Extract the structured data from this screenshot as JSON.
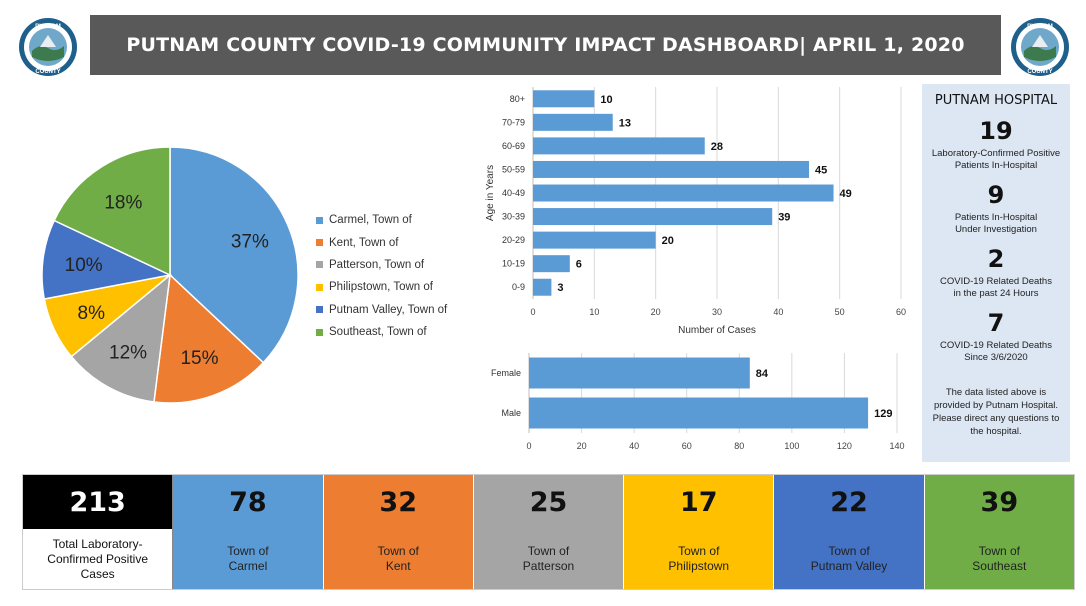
{
  "header": {
    "title": "PUTNAM COUNTY COVID-19 COMMUNITY IMPACT DASHBOARD| APRIL 1, 2020"
  },
  "seal": {
    "text_top": "PUTNAM",
    "text_bottom": "COUNTY"
  },
  "colors": {
    "title_bar": "#595959",
    "hospital_panel": "#dde6f3",
    "bar": "#5b9bd5"
  },
  "chart_data": [
    {
      "type": "pie",
      "categories": [
        "Carmel, Town of",
        "Kent, Town of",
        "Patterson, Town of",
        "Philipstown, Town of",
        "Putnam Valley, Town of",
        "Southeast, Town of"
      ],
      "values": [
        37,
        15,
        12,
        8,
        10,
        18
      ],
      "labels": [
        "37%",
        "15%",
        "12%",
        "8%",
        "10%",
        "18%"
      ],
      "colors": [
        "#5b9bd5",
        "#ed7d31",
        "#a5a5a5",
        "#ffc000",
        "#4472c4",
        "#70ad47"
      ],
      "legend": "right"
    },
    {
      "type": "bar",
      "orientation": "horizontal",
      "categories": [
        "80+",
        "70-79",
        "60-69",
        "50-59",
        "40-49",
        "30-39",
        "20-29",
        "10-19",
        "0-9"
      ],
      "values": [
        10,
        13,
        28,
        45,
        49,
        39,
        20,
        6,
        3
      ],
      "xlabel": "Number of Cases",
      "ylabel": "Age in Years",
      "xlim": [
        0,
        60
      ],
      "xticks": [
        "0",
        "10",
        "20",
        "30",
        "40",
        "50",
        "60"
      ],
      "grid": true,
      "color": "#5b9bd5"
    },
    {
      "type": "bar",
      "orientation": "horizontal",
      "categories": [
        "Female",
        "Male"
      ],
      "values": [
        84,
        129
      ],
      "xlim": [
        0,
        140
      ],
      "xticks": [
        "0",
        "20",
        "40",
        "60",
        "80",
        "100",
        "120",
        "140"
      ],
      "grid": true,
      "color": "#5b9bd5"
    }
  ],
  "hospital": {
    "title": "PUTNAM HOSPITAL",
    "stats": [
      {
        "value": "19",
        "label_1": "Laboratory-Confirmed Positive",
        "label_2": "Patients In-Hospital"
      },
      {
        "value": "9",
        "label_1": "Patients In-Hospital",
        "label_2": "Under Investigation"
      },
      {
        "value": "2",
        "label_1": "COVID-19 Related Deaths",
        "label_2": "in the past 24 Hours"
      },
      {
        "value": "7",
        "label_1": "COVID-19 Related Deaths",
        "label_2": "Since 3/6/2020"
      }
    ],
    "note": "The data listed above is provided by Putnam Hospital. Please direct any questions to the hospital."
  },
  "tiles": [
    {
      "value": "213",
      "label_1": "Total Laboratory-",
      "label_2": "Confirmed Positive",
      "label_3": "Cases",
      "color": "#000000"
    },
    {
      "value": "78",
      "label_1": "Town of",
      "label_2": "Carmel",
      "label_3": "",
      "color": "#5b9bd5"
    },
    {
      "value": "32",
      "label_1": "Town of",
      "label_2": "Kent",
      "label_3": "",
      "color": "#ed7d31"
    },
    {
      "value": "25",
      "label_1": "Town of",
      "label_2": "Patterson",
      "label_3": "",
      "color": "#a5a5a5"
    },
    {
      "value": "17",
      "label_1": "Town of",
      "label_2": "Philipstown",
      "label_3": "",
      "color": "#ffc000"
    },
    {
      "value": "22",
      "label_1": "Town of",
      "label_2": "Putnam Valley",
      "label_3": "",
      "color": "#4472c4"
    },
    {
      "value": "39",
      "label_1": "Town of",
      "label_2": "Southeast",
      "label_3": "",
      "color": "#70ad47"
    }
  ]
}
